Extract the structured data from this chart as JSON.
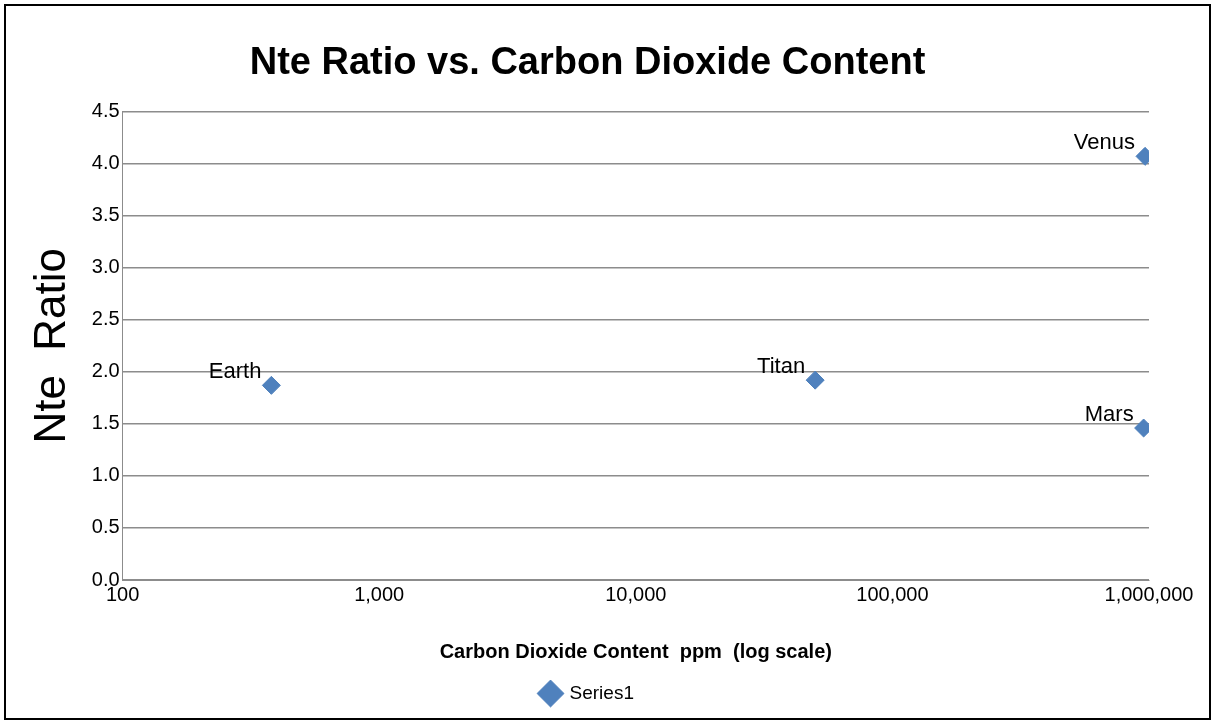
{
  "chart_data": {
    "type": "scatter",
    "title": "Nte Ratio vs. Carbon Dioxide Content",
    "xlabel": "Carbon Dioxide Content  ppm  (log scale)",
    "ylabel": "Nte  Ratio",
    "x": [
      380,
      50000,
      965000,
      953000
    ],
    "series": [
      {
        "name": "Series1",
        "color": "#4f81bd",
        "values": [
          1.87,
          1.92,
          4.07,
          1.46
        ]
      }
    ],
    "annotations": [
      {
        "text": "Earth",
        "x": 380,
        "y": 1.87
      },
      {
        "text": "Titan",
        "x": 50000,
        "y": 1.92
      },
      {
        "text": "Venus",
        "x": 965000,
        "y": 4.07
      },
      {
        "text": "Mars",
        "x": 953000,
        "y": 1.46
      }
    ],
    "log": "x",
    "xlim": [
      100,
      1000000
    ],
    "xticks": [
      100,
      {
        "value": 1000,
        "label": "1,000"
      },
      {
        "value": 10000,
        "label": "10,000"
      },
      {
        "value": 100000,
        "label": "100,000"
      },
      {
        "value": 1000000,
        "label": "1,000,000"
      }
    ],
    "ylim": [
      0,
      4.5
    ],
    "yticks": [
      {
        "value": 0,
        "label": "0.0"
      },
      {
        "value": 0.5,
        "label": "0.5"
      },
      {
        "value": 1,
        "label": "1.0"
      },
      {
        "value": 1.5,
        "label": "1.5"
      },
      {
        "value": 2,
        "label": "2.0"
      },
      {
        "value": 2.5,
        "label": "2.5"
      },
      {
        "value": 3,
        "label": "3.0"
      },
      {
        "value": 3.5,
        "label": "3.5"
      },
      {
        "value": 4,
        "label": "4.0"
      },
      {
        "value": 4.5,
        "label": "4.5"
      }
    ],
    "grid": "y",
    "legend": "bottom",
    "marker": "diamond"
  }
}
